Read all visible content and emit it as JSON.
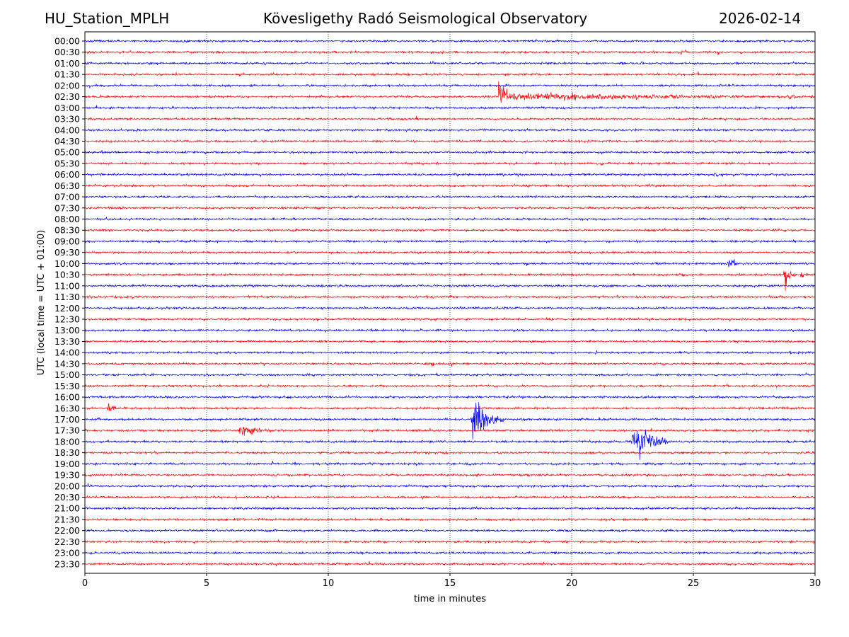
{
  "header": {
    "station": "HU_Station_MPLH",
    "title": "Kövesligethy Radó Seismological Observatory",
    "date": "2026-02-14"
  },
  "chart_data": {
    "type": "line",
    "title": "Kövesligethy Radó Seismological Observatory",
    "xlabel": "time in minutes",
    "ylabel": "UTC (local time = UTC + 01:00)",
    "xlim": [
      0,
      30
    ],
    "x_ticks": [
      0,
      5,
      10,
      15,
      20,
      25,
      30
    ],
    "x_tick_labels": [
      "0",
      "5",
      "10",
      "15",
      "20",
      "25",
      "30"
    ],
    "grid": "vertical dotted at x ticks",
    "row_labels": [
      "00:00",
      "00:30",
      "01:00",
      "01:30",
      "02:00",
      "02:30",
      "03:00",
      "03:30",
      "04:00",
      "04:30",
      "05:00",
      "05:30",
      "06:00",
      "06:30",
      "07:00",
      "07:30",
      "08:00",
      "08:30",
      "09:00",
      "09:30",
      "10:00",
      "10:30",
      "11:00",
      "11:30",
      "12:00",
      "12:30",
      "13:00",
      "13:30",
      "14:00",
      "14:30",
      "15:00",
      "15:30",
      "16:00",
      "16:30",
      "17:00",
      "17:30",
      "18:00",
      "18:30",
      "19:00",
      "19:30",
      "20:00",
      "20:30",
      "21:00",
      "21:30",
      "22:00",
      "22:30",
      "23:00",
      "23:30"
    ],
    "series_colors": [
      "#0000ff",
      "#ff0000"
    ],
    "noise_amplitude": 0.12,
    "events": [
      {
        "row": "02:30",
        "onset_min": 17.0,
        "duration_min": 13.0,
        "peak_amplitude": 3.0,
        "coda_amplitude": 0.5,
        "color": "red"
      },
      {
        "row": "02:30",
        "onset_min": 19.8,
        "duration_min": 2.5,
        "peak_amplitude": 0.7,
        "color": "red"
      },
      {
        "row": "02:30",
        "onset_min": 28.8,
        "duration_min": 1.2,
        "peak_amplitude": 0.45,
        "color": "red"
      },
      {
        "row": "05:30",
        "onset_min": 5.9,
        "duration_min": 0.3,
        "peak_amplitude": 0.35,
        "color": "red"
      },
      {
        "row": "06:00",
        "onset_min": 25.8,
        "duration_min": 0.6,
        "peak_amplitude": 0.6,
        "color": "blue"
      },
      {
        "row": "10:00",
        "onset_min": 26.4,
        "duration_min": 0.7,
        "peak_amplitude": 1.2,
        "color": "blue"
      },
      {
        "row": "10:30",
        "onset_min": 8.7,
        "duration_min": 0.2,
        "peak_amplitude": 0.35,
        "color": "red"
      },
      {
        "row": "10:30",
        "onset_min": 9.9,
        "duration_min": 0.2,
        "peak_amplitude": 0.35,
        "color": "red"
      },
      {
        "row": "10:30",
        "onset_min": 28.7,
        "duration_min": 0.5,
        "peak_amplitude": 3.0,
        "color": "red"
      },
      {
        "row": "10:30",
        "onset_min": 29.4,
        "duration_min": 0.4,
        "peak_amplitude": 0.9,
        "color": "red"
      },
      {
        "row": "14:00",
        "onset_min": 20.9,
        "duration_min": 0.5,
        "peak_amplitude": 0.45,
        "color": "blue"
      },
      {
        "row": "14:30",
        "onset_min": 14.2,
        "duration_min": 0.4,
        "peak_amplitude": 0.9,
        "color": "red"
      },
      {
        "row": "14:30",
        "onset_min": 15.0,
        "duration_min": 0.3,
        "peak_amplitude": 0.9,
        "color": "red"
      },
      {
        "row": "16:30",
        "onset_min": 0.9,
        "duration_min": 0.6,
        "peak_amplitude": 1.3,
        "color": "red"
      },
      {
        "row": "17:00",
        "onset_min": 15.85,
        "duration_min": 1.4,
        "peak_amplitude": 4.3,
        "color": "blue"
      },
      {
        "row": "17:30",
        "onset_min": 6.3,
        "duration_min": 1.5,
        "peak_amplitude": 1.6,
        "color": "red"
      },
      {
        "row": "18:00",
        "onset_min": 22.45,
        "duration_min": 1.6,
        "peak_amplitude": 4.3,
        "color": "blue"
      },
      {
        "row": "19:00",
        "onset_min": 8.5,
        "duration_min": 1.2,
        "peak_amplitude": 0.25,
        "color": "blue"
      },
      {
        "row": "21:30",
        "onset_min": 6.0,
        "duration_min": 1.5,
        "peak_amplitude": 0.3,
        "color": "red"
      }
    ]
  }
}
